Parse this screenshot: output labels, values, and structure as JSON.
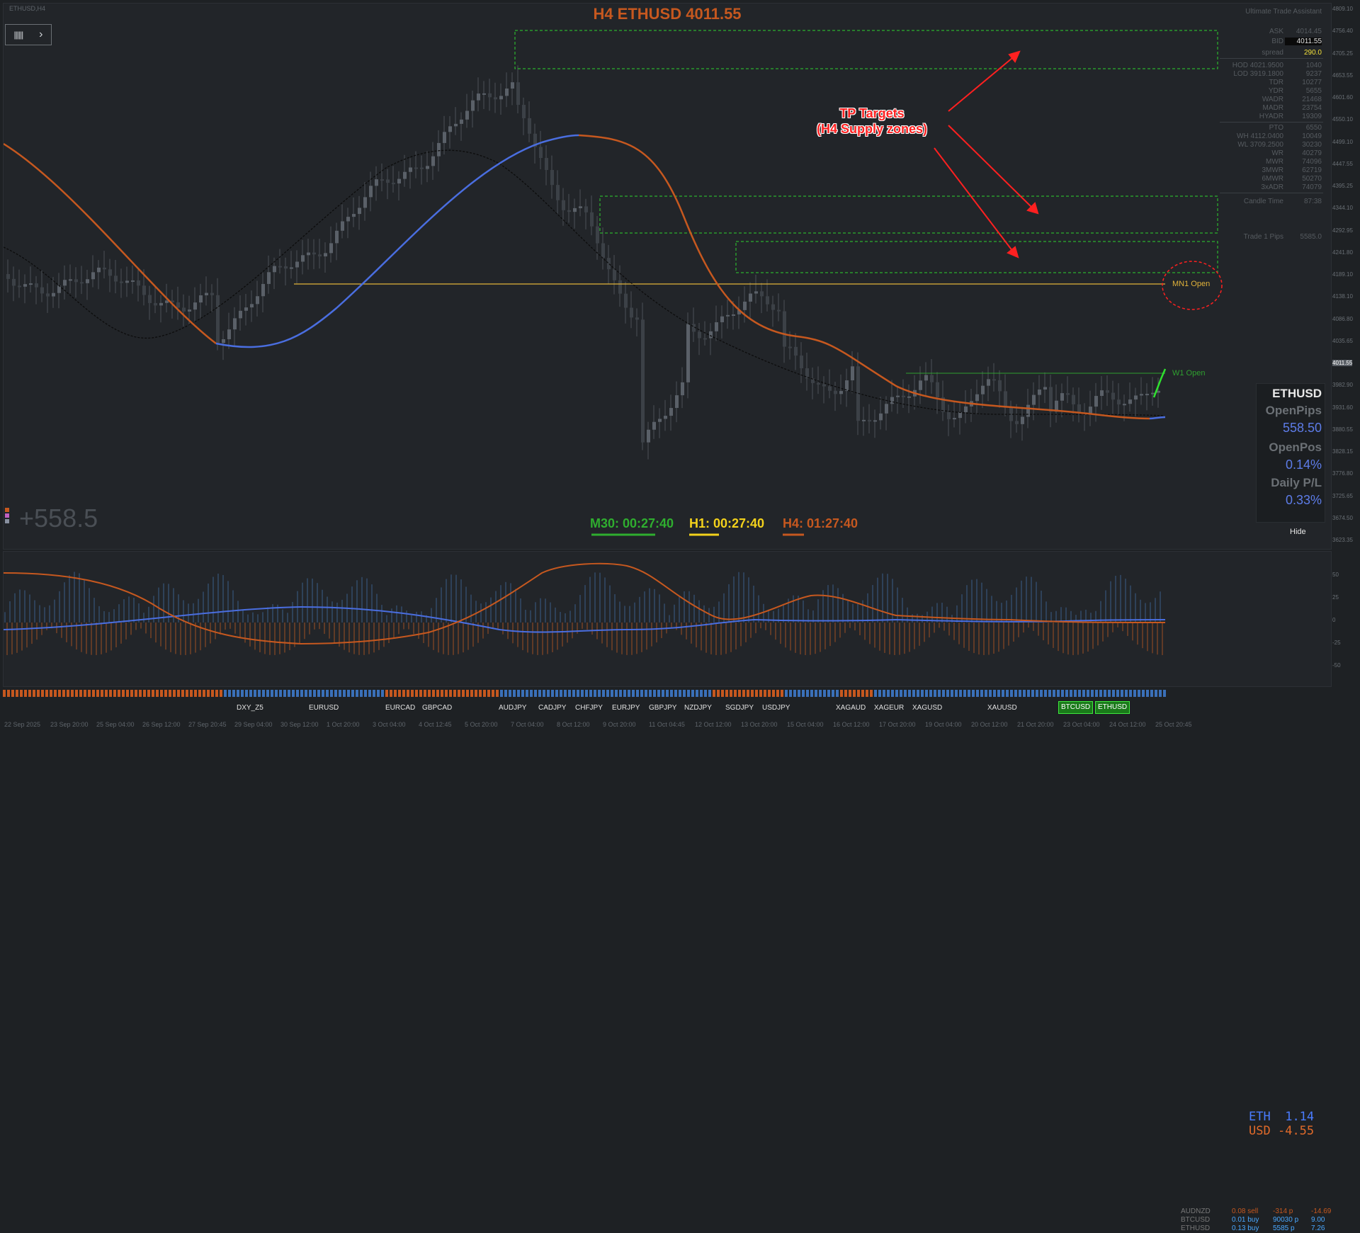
{
  "window": {
    "symbol_label": "ETHUSD,H4"
  },
  "title": "H4 ETHUSD 4011.55",
  "overlay": {
    "big_pl": "+558.5",
    "tp_line1": "TP Targets",
    "tp_line2": "(H4 Supply zones)",
    "mn1_label": "MN1 Open",
    "w1_label": "W1 Open"
  },
  "timers": {
    "m30": "M30: 00:27:40",
    "h1": "H1: 00:27:40",
    "h4": "H4: 01:27:40"
  },
  "colors": {
    "accent_orange": "#c6581f",
    "accent_blue": "#4a6ee0",
    "zone_green": "#2fd42f",
    "mn1_yellow": "#e2b33a",
    "tp_red": "#ff2020"
  },
  "info_panel": {
    "title": "Ultimate Trade Assistant",
    "rows": [
      {
        "label": "ASK",
        "value": "4014.45"
      },
      {
        "label": "BID",
        "value": "4011.55"
      },
      {
        "label": "spread",
        "value": "290.0"
      },
      {
        "label": "HOD 4021.9500",
        "value": "1040"
      },
      {
        "label": "LOD 3919.1800",
        "value": "9237"
      },
      {
        "label": "TDR",
        "value": "10277"
      },
      {
        "label": "YDR",
        "value": "5655"
      },
      {
        "label": "WADR",
        "value": "21468"
      },
      {
        "label": "MADR",
        "value": "23754"
      },
      {
        "label": "HYADR",
        "value": "19309"
      },
      {
        "label": "PTO",
        "value": "6550"
      },
      {
        "label": "WH 4112.0400",
        "value": "10049"
      },
      {
        "label": "WL 3709.2500",
        "value": "30230"
      },
      {
        "label": "WR",
        "value": "40279"
      },
      {
        "label": "MWR",
        "value": "74096"
      },
      {
        "label": "3MWR",
        "value": "62719"
      },
      {
        "label": "6MWR",
        "value": "50270"
      },
      {
        "label": "3xADR",
        "value": "74079"
      },
      {
        "label": "Candle Time",
        "value": "87:38"
      },
      {
        "label": "Trade 1 Pips",
        "value": "5585.0"
      }
    ]
  },
  "account": {
    "symbol": "ETHUSD",
    "open_pips_label": "OpenPips",
    "open_pips": "558.50",
    "open_pos_label": "OpenPos",
    "open_pos": "0.14%",
    "daily_pl_label": "Daily P/L",
    "daily_pl": "0.33%",
    "hide_label": "Hide"
  },
  "currency_strength": {
    "eth_label": "ETH",
    "eth_value": "1.14",
    "usd_label": "USD",
    "usd_value": "-4.55"
  },
  "positions": [
    {
      "symbol": "AUDNZD",
      "lots": "0.08 sell",
      "pips": "-314 p",
      "pl": "-14.69"
    },
    {
      "symbol": "BTCUSD",
      "lots": "0.01 buy",
      "pips": "90030 p",
      "pl": "9.00"
    },
    {
      "symbol": "ETHUSD",
      "lots": "0.13 buy",
      "pips": "5585 p",
      "pl": "7.26"
    }
  ],
  "price_axis": [
    "4809.10",
    "4756.40",
    "4705.25",
    "4653.55",
    "4601.60",
    "4550.10",
    "4499.10",
    "4447.55",
    "4395.25",
    "4344.10",
    "4292.95",
    "4241.80",
    "4189.10",
    "4138.10",
    "4086.80",
    "4035.65",
    "4011.55",
    "3982.90",
    "3931.60",
    "3880.55",
    "3828.15",
    "3776.80",
    "3725.65",
    "3674.50",
    "3623.35"
  ],
  "sub_axis": [
    "50",
    "25",
    "0",
    "-25",
    "-50"
  ],
  "time_axis": [
    "22 Sep 2025",
    "23 Sep 20:00",
    "25 Sep 04:00",
    "26 Sep 12:00",
    "27 Sep 20:45",
    "29 Sep 04:00",
    "30 Sep 12:00",
    "1 Oct 20:00",
    "3 Oct 04:00",
    "4 Oct 12:45",
    "5 Oct 20:00",
    "7 Oct 04:00",
    "8 Oct 12:00",
    "9 Oct 20:00",
    "11 Oct 04:45",
    "12 Oct 12:00",
    "13 Oct 20:00",
    "15 Oct 04:00",
    "16 Oct 12:00",
    "17 Oct 20:00",
    "19 Oct 04:00",
    "20 Oct 12:00",
    "21 Oct 20:00",
    "23 Oct 04:00",
    "24 Oct 12:00",
    "25 Oct 20:45"
  ],
  "pairs": [
    "DXY_Z5",
    "EURUSD",
    "EURCAD",
    "GBPCAD",
    "AUDJPY",
    "CADJPY",
    "CHFJPY",
    "EURJPY",
    "GBPJPY",
    "NZDJPY",
    "SGDJPY",
    "USDJPY",
    "XAGAUD",
    "XAGEUR",
    "XAGUSD",
    "XAUUSD"
  ],
  "active_pairs": [
    "BTCUSD",
    "ETHUSD"
  ]
}
